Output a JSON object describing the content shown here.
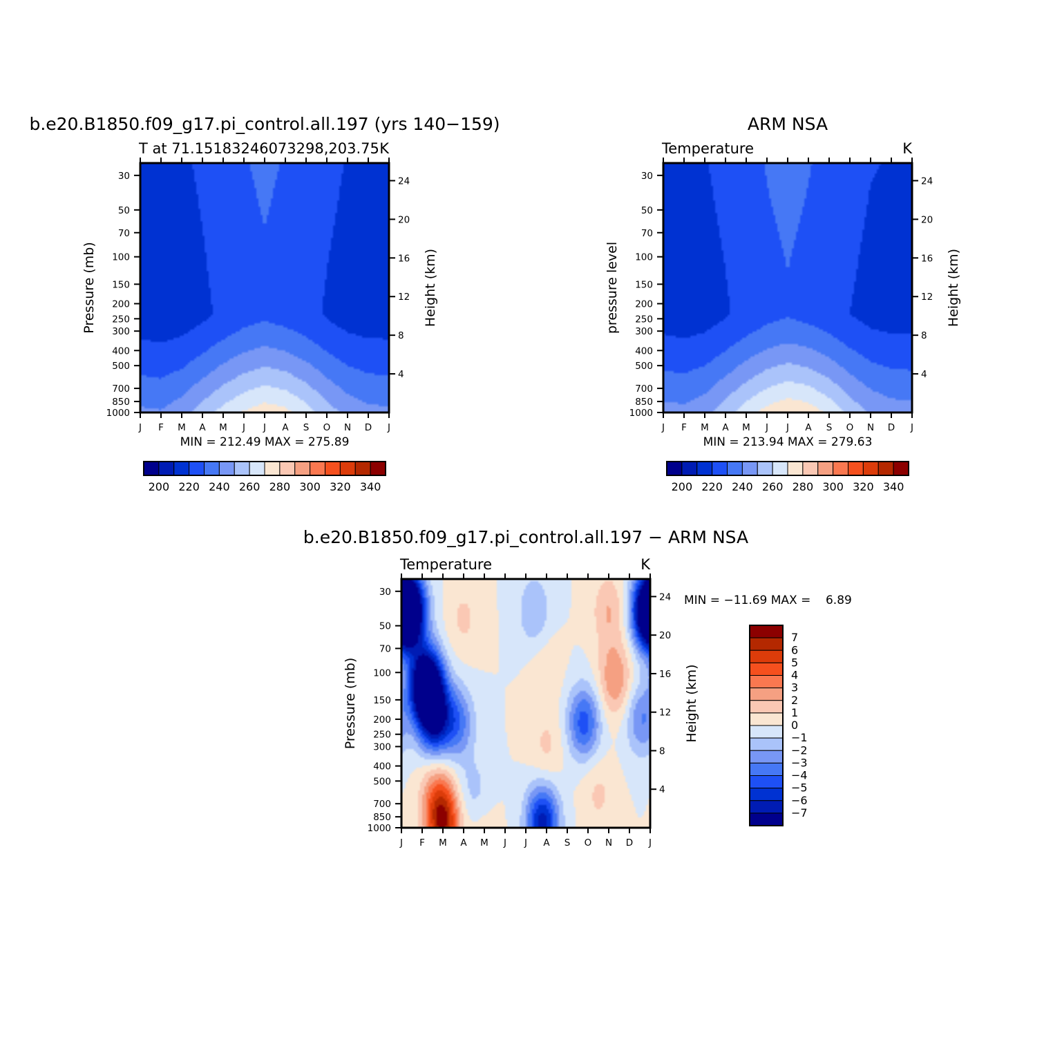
{
  "colors": {
    "model_palette": [
      "#00008c",
      "#001cb4",
      "#0032d2",
      "#1e50f5",
      "#4678f5",
      "#7897f5",
      "#aac3fa",
      "#d7e6fa",
      "#fae6d2",
      "#fac8b4",
      "#f5a082",
      "#fa7850",
      "#f5501e",
      "#dc3c0a",
      "#b42800",
      "#8c0000"
    ],
    "diff_palette": [
      "#00008c",
      "#001cb4",
      "#0032d2",
      "#1e50f5",
      "#4678f5",
      "#7897f5",
      "#aac3fa",
      "#d7e6fa",
      "#fae6d2",
      "#fac8b4",
      "#f5a082",
      "#fa7850",
      "#f5501e",
      "#dc3c0a",
      "#b42800",
      "#8c0000"
    ]
  },
  "chart_data": [
    {
      "type": "heatmap",
      "title": "b.e20.B1850.f09_g17.pi_control.all.197 (yrs 140−159)",
      "subtitle_left": "T at 71.15183246073298,203.75",
      "subtitle_right": "K",
      "ylabel": "Pressure (mb)",
      "y2label": "Height (km)",
      "x_ticks": [
        "J",
        "F",
        "M",
        "A",
        "M",
        "J",
        "J",
        "A",
        "S",
        "O",
        "N",
        "D",
        "J"
      ],
      "y_ticks": [
        30,
        50,
        70,
        100,
        150,
        200,
        250,
        300,
        400,
        500,
        700,
        850,
        1000
      ],
      "y2_ticks": [
        24,
        20,
        16,
        12,
        8,
        4
      ],
      "ylim": [
        1000,
        25
      ],
      "stats": "MIN = 212.49 MAX = 275.89",
      "colorbar_labels": [
        "200",
        "220",
        "240",
        "260",
        "280",
        "300",
        "320",
        "340"
      ],
      "levels": [
        195,
        200,
        205,
        210,
        215,
        220,
        225,
        230,
        235,
        240,
        245,
        250,
        255,
        260,
        265,
        270,
        275,
        280,
        285,
        290,
        295,
        300,
        305,
        310,
        315,
        320,
        325,
        330,
        335,
        340,
        345
      ],
      "surface_by_month": [
        242,
        241,
        246,
        255,
        264,
        271,
        276,
        273,
        265,
        255,
        247,
        243,
        242
      ],
      "tropopause_by_month": [
        215,
        214,
        215,
        218,
        222,
        226,
        228,
        226,
        223,
        219,
        216,
        215,
        215
      ]
    },
    {
      "type": "heatmap",
      "title": "ARM NSA",
      "subtitle_left": "Temperature",
      "subtitle_right": "K",
      "ylabel": "pressure level",
      "y2label": "Height (km)",
      "x_ticks": [
        "J",
        "F",
        "M",
        "A",
        "M",
        "J",
        "J",
        "A",
        "S",
        "O",
        "N",
        "D",
        "J"
      ],
      "y_ticks": [
        30,
        50,
        70,
        100,
        150,
        200,
        250,
        300,
        400,
        500,
        700,
        850,
        1000
      ],
      "y2_ticks": [
        24,
        20,
        16,
        12,
        8,
        4
      ],
      "ylim": [
        1000,
        25
      ],
      "stats": "MIN = 213.94 MAX = 279.63",
      "colorbar_labels": [
        "200",
        "220",
        "240",
        "260",
        "280",
        "300",
        "320",
        "340"
      ],
      "levels": [
        195,
        200,
        205,
        210,
        215,
        220,
        225,
        230,
        235,
        240,
        245,
        250,
        255,
        260,
        265,
        270,
        275,
        280,
        285,
        290,
        295,
        300,
        305,
        310,
        315,
        320,
        325,
        330,
        335,
        340,
        345
      ],
      "surface_by_month": [
        244,
        243,
        247,
        256,
        266,
        274,
        279,
        276,
        268,
        257,
        249,
        245,
        244
      ],
      "tropopause_by_month": [
        216,
        215,
        216,
        219,
        223,
        227,
        229,
        227,
        224,
        220,
        217,
        216,
        216
      ]
    },
    {
      "type": "heatmap",
      "title": "b.e20.B1850.f09_g17.pi_control.all.197 − ARM NSA",
      "subtitle_left": "Temperature",
      "subtitle_right": "K",
      "ylabel": "Pressure (mb)",
      "y2label": "Height (km)",
      "x_ticks": [
        "J",
        "F",
        "M",
        "A",
        "M",
        "J",
        "J",
        "A",
        "S",
        "O",
        "N",
        "D",
        "J"
      ],
      "y_ticks": [
        30,
        50,
        70,
        100,
        150,
        200,
        250,
        300,
        400,
        500,
        700,
        850,
        1000
      ],
      "y2_ticks": [
        24,
        20,
        16,
        12,
        8,
        4
      ],
      "ylim": [
        1000,
        25
      ],
      "stats": "MIN = −11.69 MAX =    6.89",
      "colorbar_labels": [
        "7",
        "6",
        "5",
        "4",
        "3",
        "2",
        "1",
        "0",
        "−1",
        "−2",
        "−3",
        "−4",
        "−5",
        "−6",
        "−7"
      ],
      "levels": [
        -7,
        -6,
        -5,
        -4,
        -3,
        -2,
        -1,
        0,
        1,
        2,
        3,
        4,
        5,
        6,
        7
      ],
      "features": [
        {
          "month": 1.2,
          "pressure": 120,
          "value": -11.5
        },
        {
          "month": 0.4,
          "pressure": 40,
          "value": -9.5
        },
        {
          "month": 1.6,
          "pressure": 200,
          "value": -6.5
        },
        {
          "month": 2.7,
          "pressure": 210,
          "value": -3.5
        },
        {
          "month": 8.8,
          "pressure": 210,
          "value": -4.5
        },
        {
          "month": 6.8,
          "pressure": 920,
          "value": -6.5
        },
        {
          "month": 6.4,
          "pressure": 40,
          "value": -2.0
        },
        {
          "month": 3.5,
          "pressure": 600,
          "value": -1.5
        },
        {
          "month": 11.9,
          "pressure": 40,
          "value": -9.0
        },
        {
          "month": 11.6,
          "pressure": 200,
          "value": -3.0
        },
        {
          "month": 2.0,
          "pressure": 930,
          "value": 6.5
        },
        {
          "month": 1.7,
          "pressure": 600,
          "value": 2.5
        },
        {
          "month": 10.3,
          "pressure": 110,
          "value": 3.0
        },
        {
          "month": 10.0,
          "pressure": 40,
          "value": 2.0
        },
        {
          "month": 3.0,
          "pressure": 45,
          "value": 1.2
        },
        {
          "month": 7.0,
          "pressure": 95,
          "value": 0.8
        },
        {
          "month": 7.0,
          "pressure": 300,
          "value": 1.2
        },
        {
          "month": 9.5,
          "pressure": 600,
          "value": 1.2
        },
        {
          "month": 3.8,
          "pressure": 990,
          "value": 0.8
        }
      ]
    }
  ]
}
